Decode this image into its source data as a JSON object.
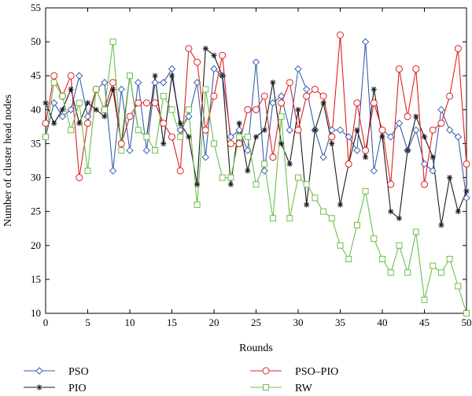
{
  "chart_data": {
    "type": "line",
    "xlabel": "Rounds",
    "ylabel": "Number of cluster head nodes",
    "xlim": [
      0,
      50
    ],
    "ylim": [
      10,
      55
    ],
    "xticks": [
      0,
      5,
      10,
      15,
      20,
      25,
      30,
      35,
      40,
      45,
      50
    ],
    "yticks": [
      10,
      15,
      20,
      25,
      30,
      35,
      40,
      45,
      50,
      55
    ],
    "grid": false,
    "legend_position": "bottom",
    "x": [
      0,
      1,
      2,
      3,
      4,
      5,
      6,
      7,
      8,
      9,
      10,
      11,
      12,
      13,
      14,
      15,
      16,
      17,
      18,
      19,
      20,
      21,
      22,
      23,
      24,
      25,
      26,
      27,
      28,
      29,
      30,
      31,
      32,
      33,
      34,
      35,
      36,
      37,
      38,
      39,
      40,
      41,
      42,
      43,
      44,
      45,
      46,
      47,
      48,
      49,
      50
    ],
    "series": [
      {
        "name": "PSO",
        "color": "#3a5fb0",
        "marker": "diamond",
        "values": [
          36,
          41,
          39,
          40,
          45,
          39,
          43,
          44,
          31,
          43,
          34,
          44,
          34,
          44,
          44,
          46,
          37,
          39,
          44,
          33,
          46,
          45,
          36,
          37,
          34,
          47,
          31,
          41,
          42,
          37,
          46,
          43,
          37,
          33,
          37,
          37,
          36,
          34,
          50,
          31,
          37,
          36,
          38,
          34,
          37,
          32,
          31,
          40,
          37,
          36,
          27
        ]
      },
      {
        "name": "PIO",
        "color": "#1a1a1a",
        "marker": "asterisk",
        "values": [
          41,
          38,
          40,
          43,
          38,
          41,
          40,
          39,
          43,
          35,
          45,
          37,
          36,
          45,
          35,
          45,
          38,
          36,
          29,
          49,
          48,
          45,
          29,
          38,
          31,
          36,
          37,
          44,
          35,
          32,
          40,
          26,
          37,
          41,
          35,
          26,
          32,
          37,
          33,
          43,
          36,
          25,
          24,
          34,
          39,
          36,
          33,
          23,
          30,
          25,
          28
        ]
      },
      {
        "name": "PSO–PIO",
        "color": "#e02020",
        "marker": "circle",
        "values": [
          38,
          45,
          42,
          45,
          30,
          38,
          43,
          40,
          44,
          35,
          39,
          41,
          41,
          41,
          38,
          36,
          31,
          49,
          47,
          37,
          42,
          48,
          35,
          35,
          40,
          40,
          42,
          33,
          41,
          44,
          37,
          42,
          43,
          42,
          36,
          51,
          32,
          41,
          34,
          41,
          37,
          29,
          46,
          39,
          46,
          29,
          37,
          38,
          42,
          49,
          32
        ]
      },
      {
        "name": "RW",
        "color": "#6cc04a",
        "marker": "square",
        "values": [
          36,
          44,
          42,
          37,
          41,
          31,
          43,
          40,
          50,
          34,
          45,
          37,
          36,
          34,
          42,
          40,
          36,
          40,
          26,
          43,
          35,
          30,
          30,
          36,
          36,
          29,
          32,
          24,
          39,
          24,
          30,
          29,
          27,
          25,
          24,
          20,
          18,
          23,
          28,
          21,
          18,
          16,
          20,
          16,
          22,
          12,
          17,
          16,
          18,
          14,
          10
        ]
      }
    ]
  }
}
